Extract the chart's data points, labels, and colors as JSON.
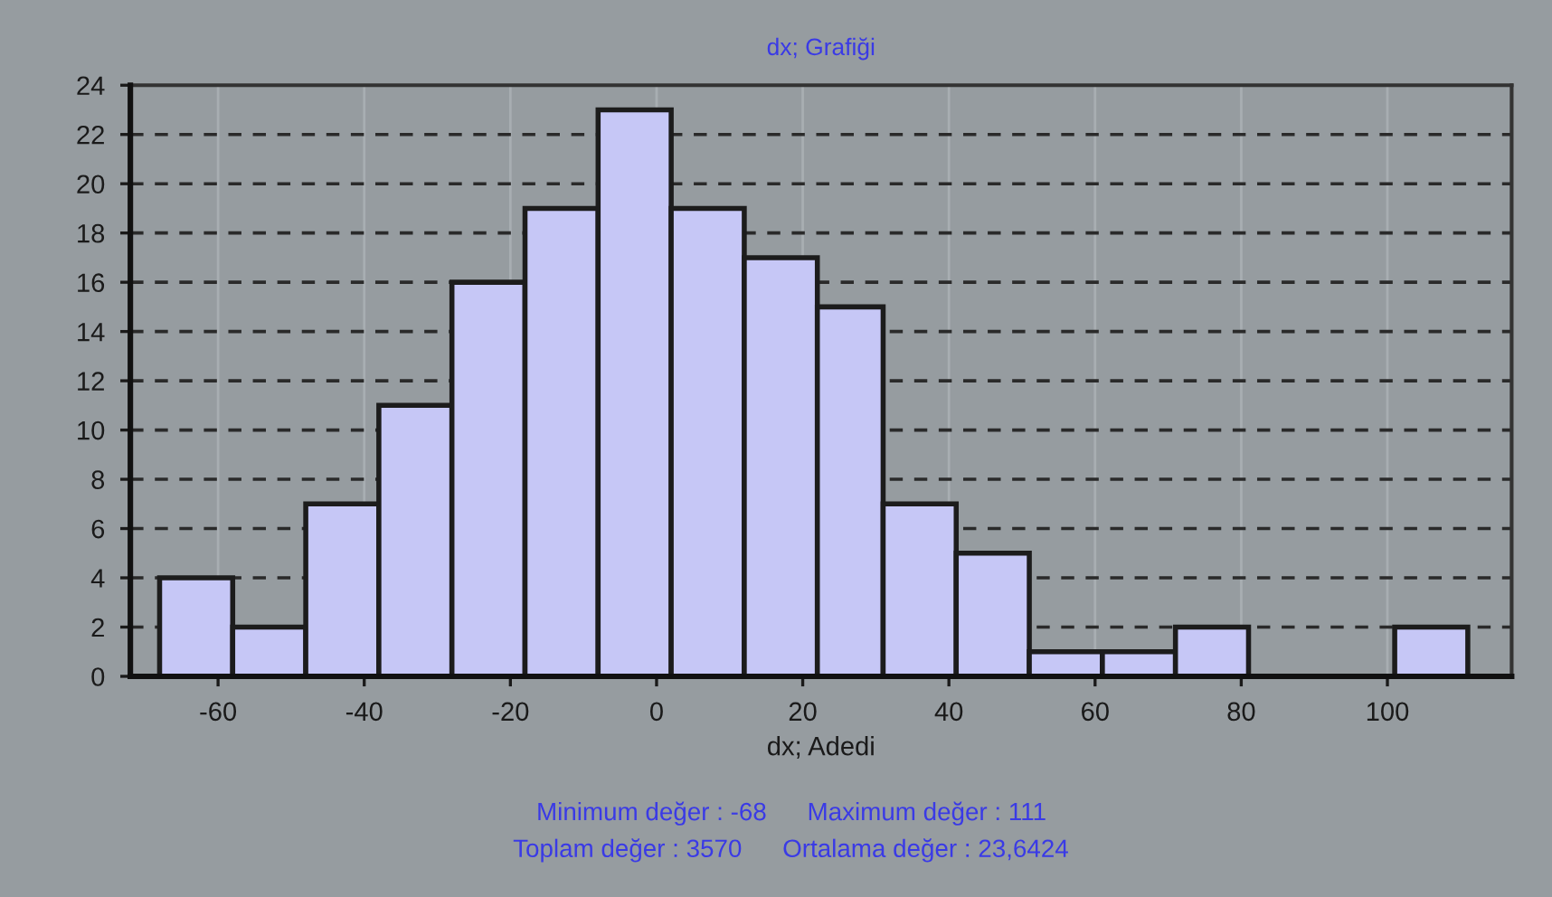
{
  "chart_data": {
    "type": "histogram",
    "title": "dx; Grafiği",
    "xlabel": "dx; Adedi",
    "bins": [
      -68,
      -58,
      -48,
      -38,
      -28,
      -18,
      -8,
      2,
      12,
      22,
      31,
      41,
      51,
      61,
      71,
      81,
      101,
      111
    ],
    "values": [
      4,
      2,
      7,
      11,
      16,
      19,
      23,
      19,
      17,
      15,
      7,
      5,
      1,
      1,
      2,
      0,
      2
    ],
    "color": "#c6c7f6",
    "xlim": [
      -72,
      117
    ],
    "xticks": [
      -60,
      -40,
      -20,
      0,
      20,
      40,
      60,
      80,
      100
    ],
    "ylim": [
      0,
      24
    ],
    "yticks": [
      0,
      2,
      4,
      6,
      8,
      10,
      12,
      14,
      16,
      18,
      20,
      22,
      24
    ],
    "grid": true,
    "annotations": [
      "Minimum değer : -68",
      "Maximum değer : 111",
      "Toplam değer : 3570",
      "Ortalama değer : 23,6424"
    ]
  }
}
